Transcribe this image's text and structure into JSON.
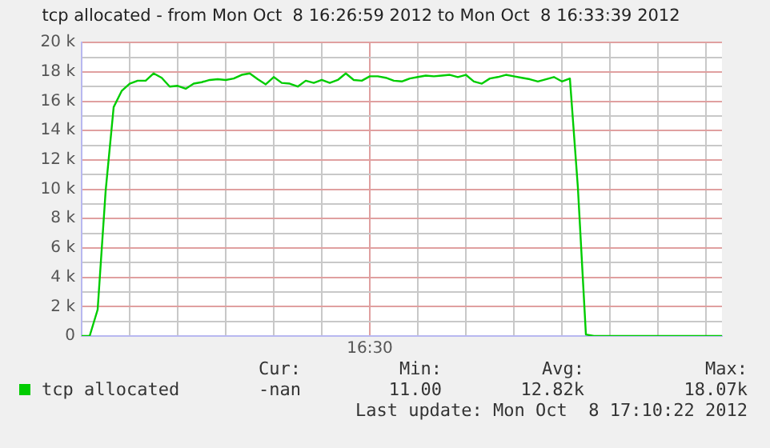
{
  "chart_data": {
    "type": "line",
    "title": "tcp allocated - from Mon Oct  8 16:26:59 2012 to Mon Oct  8 16:33:39 2012",
    "categories": [
      null,
      null,
      null,
      null,
      null,
      null,
      null,
      null,
      null,
      null,
      null,
      null,
      null,
      null,
      null,
      null,
      null,
      null,
      null,
      null,
      null,
      null,
      null,
      null,
      null,
      null,
      null,
      null,
      null,
      null,
      null,
      null,
      null,
      null,
      null,
      null,
      "16:30",
      null,
      null,
      null,
      null,
      null,
      null,
      null,
      null,
      null,
      null,
      null,
      null,
      null,
      null,
      null,
      null,
      null,
      null,
      null,
      null,
      null,
      null,
      null,
      null,
      null,
      null,
      null,
      null,
      null,
      null,
      null,
      null,
      null,
      null,
      null,
      null,
      null,
      null,
      null,
      null,
      null,
      null,
      null,
      null
    ],
    "series": [
      {
        "name": "tcp allocated",
        "color": "#00cc00",
        "values": [
          0,
          0,
          1800,
          9900,
          15600,
          16700,
          17200,
          17400,
          17400,
          17900,
          17600,
          17000,
          17050,
          16850,
          17200,
          17300,
          17450,
          17500,
          17450,
          17550,
          17800,
          17900,
          17500,
          17150,
          17650,
          17250,
          17200,
          17000,
          17400,
          17250,
          17450,
          17250,
          17450,
          17900,
          17450,
          17400,
          17700,
          17700,
          17600,
          17400,
          17350,
          17550,
          17650,
          17750,
          17700,
          17750,
          17800,
          17650,
          17800,
          17350,
          17200,
          17550,
          17650,
          17800,
          17700,
          17600,
          17500,
          17350,
          17500,
          17650,
          17350,
          17550,
          10100,
          100,
          0,
          0,
          0,
          0,
          0,
          0,
          0,
          0,
          0,
          0,
          0,
          0,
          0,
          0,
          0,
          0,
          0
        ]
      }
    ],
    "ylim": [
      0,
      20000
    ],
    "yticks": [
      {
        "value": 0,
        "label": "0"
      },
      {
        "value": 1000,
        "label": null
      },
      {
        "value": 2000,
        "label": "2 k"
      },
      {
        "value": 3000,
        "label": null
      },
      {
        "value": 4000,
        "label": "4 k"
      },
      {
        "value": 5000,
        "label": null
      },
      {
        "value": 6000,
        "label": "6 k"
      },
      {
        "value": 7000,
        "label": null
      },
      {
        "value": 8000,
        "label": "8 k"
      },
      {
        "value": 9000,
        "label": null
      },
      {
        "value": 10000,
        "label": "10 k"
      },
      {
        "value": 11000,
        "label": null
      },
      {
        "value": 12000,
        "label": "12 k"
      },
      {
        "value": 13000,
        "label": null
      },
      {
        "value": 14000,
        "label": "14 k"
      },
      {
        "value": 15000,
        "label": null
      },
      {
        "value": 16000,
        "label": "16 k"
      },
      {
        "value": 17000,
        "label": null
      },
      {
        "value": 18000,
        "label": "18 k"
      },
      {
        "value": 19000,
        "label": null
      },
      {
        "value": 20000,
        "label": "20 k"
      }
    ],
    "grid": true,
    "legend": "bottom left",
    "marker": "none",
    "line_style": "solid",
    "annotations": [
      "Cur:",
      "Min:",
      "Avg:",
      "Max:",
      "-nan",
      "11.00",
      "12.82k",
      "18.07k",
      "Last update: Mon Oct  8 17:10:22 2012"
    ]
  }
}
